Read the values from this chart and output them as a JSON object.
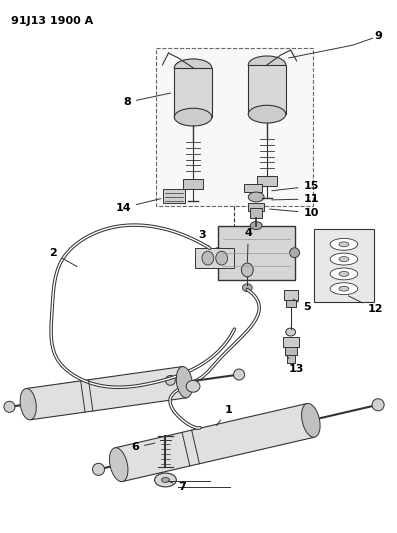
{
  "title": "91J13 1900 A",
  "bg_color": "#ffffff",
  "text_color": "#000000",
  "line_color": "#333333",
  "fig_w": 3.97,
  "fig_h": 5.33,
  "dpi": 100
}
